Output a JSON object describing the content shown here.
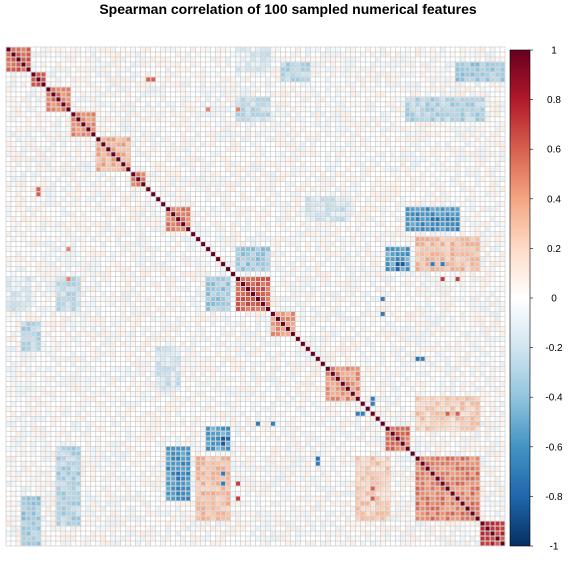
{
  "chart_data": {
    "type": "heatmap",
    "title": "Spearman correlation of 100 sampled numerical features",
    "n_features": 100,
    "value_range": [
      -1,
      1
    ],
    "diagonal_value": 1,
    "colorbar": {
      "ticks": [
        1,
        0.8,
        0.6,
        0.4,
        0.2,
        0,
        -0.2,
        -0.4,
        -0.6,
        -0.8,
        -1
      ],
      "tick_labels": [
        "1",
        "0.8",
        "0.6",
        "0.4",
        "0.2",
        "0",
        "-0.2",
        "-0.4",
        "-0.6",
        "-0.8",
        "-1"
      ],
      "colors": [
        "#67001f",
        "#b2182b",
        "#d6604d",
        "#f4a582",
        "#fddbc7",
        "#ffffff",
        "#d1e5f0",
        "#92c5de",
        "#4393c3",
        "#2166ac",
        "#053061"
      ]
    },
    "grid": true,
    "legend": "right",
    "blocks": [
      {
        "rows": [
          0,
          4
        ],
        "cols": [
          0,
          4
        ],
        "value": 0.6
      },
      {
        "rows": [
          5,
          7
        ],
        "cols": [
          5,
          7
        ],
        "value": 0.7
      },
      {
        "rows": [
          8,
          12
        ],
        "cols": [
          8,
          12
        ],
        "value": 0.5
      },
      {
        "rows": [
          13,
          17
        ],
        "cols": [
          13,
          17
        ],
        "value": 0.45
      },
      {
        "rows": [
          18,
          24
        ],
        "cols": [
          18,
          24
        ],
        "value": 0.35
      },
      {
        "rows": [
          25,
          27
        ],
        "cols": [
          25,
          27
        ],
        "value": 0.5
      },
      {
        "rows": [
          32,
          36
        ],
        "cols": [
          32,
          36
        ],
        "value": 0.5
      },
      {
        "rows": [
          46,
          52
        ],
        "cols": [
          46,
          52
        ],
        "value": 0.6
      },
      {
        "rows": [
          53,
          57
        ],
        "cols": [
          53,
          57
        ],
        "value": 0.45
      },
      {
        "rows": [
          64,
          70
        ],
        "cols": [
          64,
          70
        ],
        "value": 0.45
      },
      {
        "rows": [
          76,
          80
        ],
        "cols": [
          76,
          80
        ],
        "value": 0.55
      },
      {
        "rows": [
          82,
          94
        ],
        "cols": [
          82,
          94
        ],
        "value": 0.5
      },
      {
        "rows": [
          95,
          99
        ],
        "cols": [
          95,
          99
        ],
        "value": 0.7
      },
      {
        "rows": [
          0,
          4
        ],
        "cols": [
          46,
          52
        ],
        "value": -0.15
      },
      {
        "rows": [
          10,
          14
        ],
        "cols": [
          80,
          95
        ],
        "value": -0.3
      },
      {
        "rows": [
          10,
          14
        ],
        "cols": [
          46,
          52
        ],
        "value": -0.25
      },
      {
        "rows": [
          40,
          44
        ],
        "cols": [
          76,
          80
        ],
        "value": -0.55
      },
      {
        "rows": [
          40,
          44
        ],
        "cols": [
          46,
          52
        ],
        "value": -0.35
      },
      {
        "rows": [
          55,
          60
        ],
        "cols": [
          3,
          6
        ],
        "value": -0.3
      },
      {
        "rows": [
          80,
          90
        ],
        "cols": [
          32,
          36
        ],
        "value": -0.6
      },
      {
        "rows": [
          90,
          100
        ],
        "cols": [
          3,
          6
        ],
        "value": -0.35
      },
      {
        "rows": [
          82,
          94
        ],
        "cols": [
          38,
          44
        ],
        "value": 0.3
      },
      {
        "rows": [
          30,
          34
        ],
        "cols": [
          60,
          68
        ],
        "value": -0.2
      },
      {
        "rows": [
          70,
          76
        ],
        "cols": [
          82,
          94
        ],
        "value": 0.25
      }
    ],
    "points": [
      {
        "row": 12,
        "col": 40,
        "value": 0.5
      },
      {
        "row": 43,
        "col": 78,
        "value": -0.85
      },
      {
        "row": 43,
        "col": 79,
        "value": -0.85
      },
      {
        "row": 44,
        "col": 78,
        "value": -0.8
      },
      {
        "row": 50,
        "col": 75,
        "value": -0.7
      },
      {
        "row": 70,
        "col": 73,
        "value": -0.7
      },
      {
        "row": 71,
        "col": 73,
        "value": -0.7
      },
      {
        "row": 82,
        "col": 62,
        "value": -0.75
      },
      {
        "row": 83,
        "col": 62,
        "value": -0.7
      },
      {
        "row": 85,
        "col": 43,
        "value": -0.7
      },
      {
        "row": 87,
        "col": 43,
        "value": -0.7
      },
      {
        "row": 85,
        "col": 34,
        "value": -0.75
      },
      {
        "row": 86,
        "col": 34,
        "value": -0.75
      },
      {
        "row": 53,
        "col": 75,
        "value": -0.7
      },
      {
        "row": 28,
        "col": 6,
        "value": 0.6
      },
      {
        "row": 29,
        "col": 6,
        "value": 0.6
      },
      {
        "row": 46,
        "col": 87,
        "value": 0.7
      },
      {
        "row": 46,
        "col": 90,
        "value": 0.7
      },
      {
        "row": 73,
        "col": 88,
        "value": 0.6
      },
      {
        "row": 73,
        "col": 90,
        "value": 0.6
      },
      {
        "row": 46,
        "col": 12,
        "value": 0.5
      }
    ]
  }
}
